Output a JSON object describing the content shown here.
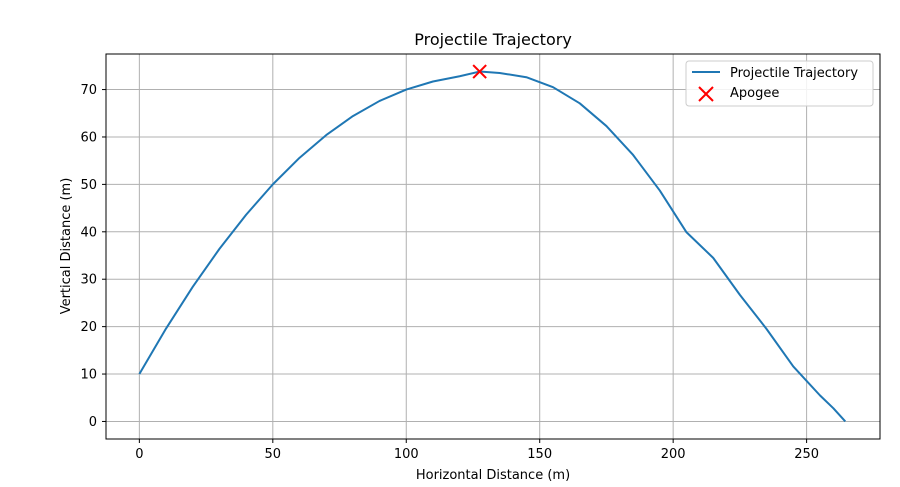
{
  "chart_data": {
    "type": "line",
    "title": "Projectile Trajectory",
    "xlabel": "Horizontal Distance (m)",
    "ylabel": "Vertical Distance (m)",
    "xlim": [
      -12.5,
      277.5
    ],
    "ylim": [
      -3.7,
      77.5
    ],
    "xticks": [
      0,
      50,
      100,
      150,
      200,
      250
    ],
    "yticks": [
      0,
      10,
      20,
      30,
      40,
      50,
      60,
      70
    ],
    "grid": true,
    "legend_position": "top-right",
    "series": [
      {
        "name": "Projectile Trajectory",
        "color": "#1f77b4",
        "marker": "line",
        "x": [
          0,
          10,
          20,
          30,
          40,
          50,
          60,
          70,
          80,
          90,
          100,
          110,
          120,
          127.5,
          135,
          145,
          155,
          165,
          175,
          185,
          195,
          205,
          215,
          225,
          235,
          245,
          255,
          260,
          264.5
        ],
        "y": [
          10,
          19.6,
          28.4,
          36.4,
          43.6,
          50.0,
          55.6,
          60.4,
          64.4,
          67.6,
          70.0,
          71.7,
          72.8,
          73.8,
          73.5,
          72.6,
          70.5,
          67.1,
          62.3,
          56.2,
          48.7,
          39.9,
          34.5,
          26.7,
          19.5,
          11.6,
          5.5,
          2.8,
          0
        ]
      },
      {
        "name": "Apogee",
        "color": "#ff0000",
        "marker": "x",
        "x": [
          127.5
        ],
        "y": [
          73.8
        ]
      }
    ]
  }
}
